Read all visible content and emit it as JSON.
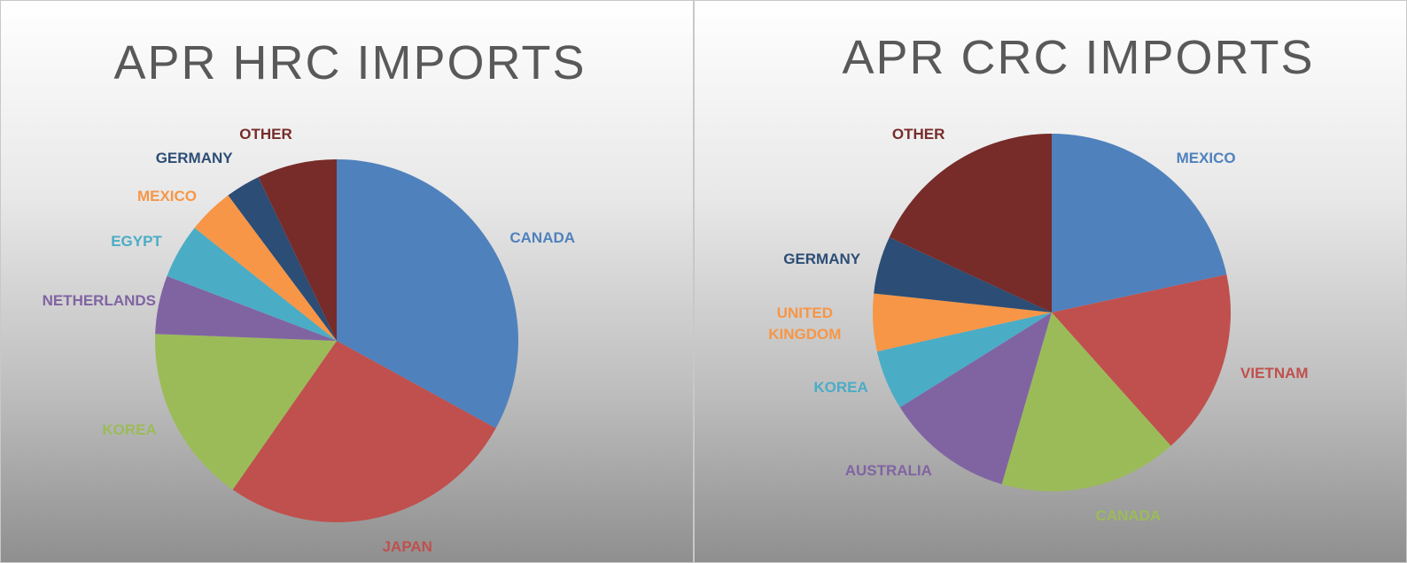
{
  "chart_data": [
    {
      "type": "pie",
      "title": "APR HRC IMPORTS",
      "categories": [
        "CANADA",
        "JAPAN",
        "KOREA",
        "NETHERLANDS",
        "EGYPT",
        "MEXICO",
        "GERMANY",
        "OTHER"
      ],
      "values": [
        33.0,
        26.7,
        15.9,
        5.2,
        4.9,
        4.1,
        3.1,
        7.1
      ],
      "colors": [
        "#4f81bd",
        "#c0504d",
        "#9bbb59",
        "#8064a2",
        "#4bacc6",
        "#f79646",
        "#2c4d75",
        "#772c2a"
      ]
    },
    {
      "type": "pie",
      "title": "APR CRC IMPORTS",
      "categories": [
        "MEXICO",
        "VIETNAM",
        "CANADA",
        "AUSTRALIA",
        "KOREA",
        "UNITED KINGDOM",
        "GERMANY",
        "OTHER"
      ],
      "values": [
        21.6,
        16.8,
        16.1,
        11.6,
        5.4,
        5.2,
        5.2,
        18.1
      ],
      "colors": [
        "#4f81bd",
        "#c0504d",
        "#9bbb59",
        "#8064a2",
        "#4bacc6",
        "#f79646",
        "#2c4d75",
        "#772c2a"
      ]
    }
  ]
}
